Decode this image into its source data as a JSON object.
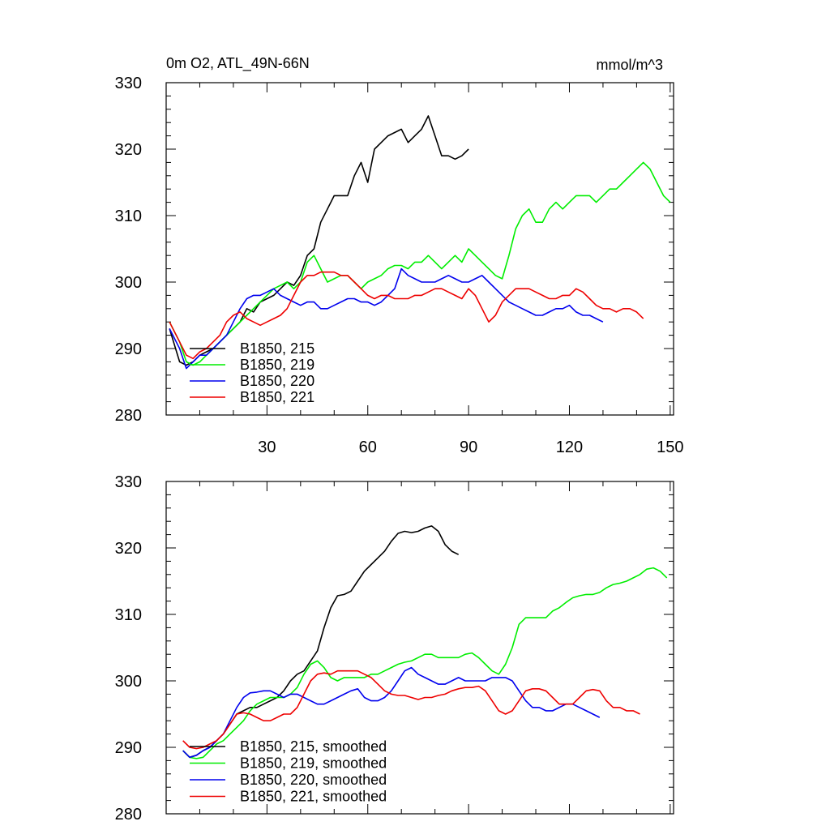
{
  "chart_data": [
    {
      "type": "line",
      "title": "0m O2, ATL_49N-66N",
      "units": "mmol/m^3",
      "xlim": [
        0,
        151
      ],
      "ylim": [
        280,
        330
      ],
      "xticks": [
        30,
        60,
        90,
        120,
        150
      ],
      "yticks": [
        280,
        290,
        300,
        310,
        320,
        330
      ],
      "grid": false,
      "legend_position": "bottom-left",
      "series": [
        {
          "name": "B1850, 215",
          "color": "#000000",
          "x": [
            1,
            4,
            6,
            8,
            10,
            12,
            14,
            16,
            18,
            20,
            22,
            24,
            26,
            28,
            30,
            32,
            34,
            36,
            38,
            40,
            42,
            44,
            46,
            48,
            50,
            52,
            54,
            56,
            58,
            60,
            62,
            64,
            66,
            68,
            70,
            72,
            74,
            76,
            78,
            80,
            82,
            84,
            86,
            88,
            90
          ],
          "y": [
            293,
            288,
            287.5,
            288,
            289,
            289.5,
            290,
            291,
            292,
            293,
            294,
            296,
            295.5,
            297,
            297.5,
            298,
            299,
            300,
            299.5,
            301,
            304,
            305,
            309,
            311,
            313,
            313,
            313,
            316,
            318,
            315,
            320,
            321,
            322,
            322.5,
            323,
            321,
            322,
            323,
            325,
            322,
            319,
            319,
            318.5,
            319,
            320
          ]
        },
        {
          "name": "B1850, 219",
          "color": "#00ee00",
          "x": [
            1,
            4,
            6,
            8,
            10,
            12,
            14,
            16,
            18,
            20,
            22,
            24,
            26,
            28,
            30,
            32,
            34,
            36,
            38,
            40,
            42,
            44,
            46,
            48,
            50,
            52,
            54,
            56,
            58,
            60,
            62,
            64,
            66,
            68,
            70,
            72,
            74,
            76,
            78,
            80,
            82,
            84,
            86,
            88,
            90,
            92,
            94,
            96,
            98,
            100,
            102,
            104,
            106,
            108,
            110,
            112,
            114,
            116,
            118,
            120,
            122,
            124,
            126,
            128,
            130,
            132,
            134,
            136,
            138,
            140,
            142,
            144,
            146,
            148,
            150
          ],
          "y": [
            294,
            291,
            288,
            287.5,
            288,
            289,
            290,
            291,
            292,
            293,
            294,
            295,
            296,
            297,
            298,
            299,
            299.5,
            300,
            299,
            300,
            303,
            304,
            302,
            300,
            300.5,
            301,
            301,
            300,
            299,
            300,
            300.5,
            301,
            302,
            302.5,
            302.5,
            302,
            303,
            303,
            304,
            303,
            302,
            303,
            304,
            303,
            305,
            304,
            303,
            302,
            301,
            300.5,
            304,
            308,
            310,
            311,
            309,
            309,
            311,
            312,
            311,
            312,
            313,
            313,
            313,
            312,
            313,
            314,
            314,
            315,
            316,
            317,
            318,
            317,
            315,
            313,
            312
          ]
        },
        {
          "name": "B1850, 220",
          "color": "#0000ee",
          "x": [
            1,
            4,
            6,
            8,
            10,
            12,
            14,
            16,
            18,
            20,
            22,
            24,
            26,
            28,
            30,
            32,
            34,
            36,
            38,
            40,
            42,
            44,
            46,
            48,
            50,
            52,
            54,
            56,
            58,
            60,
            62,
            64,
            66,
            68,
            70,
            72,
            74,
            76,
            78,
            80,
            82,
            84,
            86,
            88,
            90,
            92,
            94,
            96,
            98,
            100,
            102,
            104,
            106,
            108,
            110,
            112,
            114,
            116,
            118,
            120,
            122,
            124,
            126,
            128,
            130
          ],
          "y": [
            293,
            290,
            287,
            288,
            289,
            289,
            290,
            291,
            292,
            294,
            296,
            297.5,
            298,
            298,
            298.5,
            299,
            298,
            297.5,
            297,
            296.5,
            297,
            297,
            296,
            296,
            296.5,
            297,
            297.5,
            297.5,
            297,
            297,
            296.5,
            297,
            298,
            299,
            302,
            301,
            300.5,
            300,
            300,
            300,
            300.5,
            301,
            300.5,
            300,
            300,
            300.5,
            301,
            300,
            299,
            298,
            297,
            296.5,
            296,
            295.5,
            295,
            295,
            295.5,
            296,
            296,
            296.5,
            295.5,
            295,
            295,
            294.5,
            294
          ]
        },
        {
          "name": "B1850, 221",
          "color": "#ee0000",
          "x": [
            1,
            4,
            6,
            8,
            10,
            12,
            14,
            16,
            18,
            20,
            22,
            24,
            26,
            28,
            30,
            32,
            34,
            36,
            38,
            40,
            42,
            44,
            46,
            48,
            50,
            52,
            54,
            56,
            58,
            60,
            62,
            64,
            66,
            68,
            70,
            72,
            74,
            76,
            78,
            80,
            82,
            84,
            86,
            88,
            90,
            92,
            94,
            96,
            98,
            100,
            102,
            104,
            106,
            108,
            110,
            112,
            114,
            116,
            118,
            120,
            122,
            124,
            126,
            128,
            130,
            132,
            134,
            136,
            138,
            140,
            142
          ],
          "y": [
            294,
            291,
            289,
            288.5,
            289.5,
            290,
            291,
            292,
            294,
            295,
            295.5,
            294.5,
            294,
            293.5,
            294,
            294.5,
            295,
            296,
            298,
            300,
            301,
            301,
            301.5,
            301.5,
            301.5,
            301,
            301,
            300,
            299,
            298,
            297.5,
            298,
            298,
            297.5,
            297.5,
            297.5,
            298,
            298,
            298.5,
            299,
            299,
            298.5,
            298,
            297.5,
            299,
            298,
            296,
            294,
            295,
            297,
            298,
            299,
            299,
            299,
            298.5,
            298,
            297.5,
            297.5,
            298,
            298,
            299,
            298.5,
            297.5,
            296.5,
            296,
            296,
            295.5,
            296,
            296,
            295.5,
            294.5
          ]
        }
      ]
    },
    {
      "type": "line",
      "xlim": [
        0,
        151
      ],
      "ylim": [
        280,
        330
      ],
      "xticks": [
        30,
        60,
        90,
        120,
        150
      ],
      "yticks": [
        280,
        290,
        300,
        310,
        320,
        330
      ],
      "grid": false,
      "legend_position": "bottom-left",
      "series": [
        {
          "name": "B1850, 215, smoothed",
          "color": "#000000",
          "x": [
            5,
            7,
            9,
            11,
            13,
            15,
            17,
            19,
            21,
            23,
            25,
            27,
            29,
            31,
            33,
            35,
            37,
            39,
            41,
            43,
            45,
            47,
            49,
            51,
            53,
            55,
            57,
            59,
            61,
            63,
            65,
            67,
            69,
            71,
            73,
            75,
            77,
            79,
            81,
            83,
            85,
            87
          ],
          "y": [
            289.5,
            288.5,
            288.8,
            289.5,
            290,
            291,
            292,
            293.5,
            295,
            295.5,
            296,
            296,
            296.5,
            297,
            297.5,
            298.5,
            300,
            301,
            301.5,
            303,
            304.5,
            308,
            311,
            312.8,
            313,
            313.5,
            315,
            316.5,
            317.5,
            318.5,
            319.5,
            321,
            322.2,
            322.5,
            322.3,
            322.5,
            323,
            323.3,
            322.5,
            320.5,
            319.5,
            319
          ]
        },
        {
          "name": "B1850, 219, smoothed",
          "color": "#00ee00",
          "x": [
            5,
            7,
            9,
            11,
            13,
            15,
            17,
            19,
            21,
            23,
            25,
            27,
            29,
            31,
            33,
            35,
            37,
            39,
            41,
            43,
            45,
            47,
            49,
            51,
            53,
            55,
            57,
            59,
            61,
            63,
            65,
            67,
            69,
            71,
            73,
            75,
            77,
            79,
            81,
            83,
            85,
            87,
            89,
            91,
            93,
            95,
            97,
            99,
            101,
            103,
            105,
            107,
            109,
            111,
            113,
            115,
            117,
            119,
            121,
            123,
            125,
            127,
            129,
            131,
            133,
            135,
            137,
            139,
            141,
            143,
            145,
            147,
            149
          ],
          "y": [
            289.5,
            288.5,
            288.3,
            288.5,
            289.5,
            290.5,
            291,
            292,
            293,
            294,
            295.5,
            296.5,
            297,
            297.5,
            297.5,
            297.5,
            298,
            299,
            301,
            302.5,
            303,
            302,
            300.5,
            300,
            300.5,
            300.5,
            300.5,
            300.5,
            301,
            301,
            301.5,
            302,
            302.5,
            302.8,
            303,
            303.5,
            304,
            304,
            303.5,
            303.5,
            303.5,
            303.5,
            304,
            304.2,
            303.5,
            302.5,
            301.5,
            301,
            302.5,
            305,
            308.5,
            309.5,
            309.5,
            309.5,
            309.5,
            310.5,
            311,
            311.8,
            312.5,
            312.8,
            313,
            313,
            313.3,
            314,
            314.5,
            314.7,
            315,
            315.5,
            316,
            316.8,
            317,
            316.5,
            315.5
          ]
        },
        {
          "name": "B1850, 220, smoothed",
          "color": "#0000ee",
          "x": [
            5,
            7,
            9,
            11,
            13,
            15,
            17,
            19,
            21,
            23,
            25,
            27,
            29,
            31,
            33,
            35,
            37,
            39,
            41,
            43,
            45,
            47,
            49,
            51,
            53,
            55,
            57,
            59,
            61,
            63,
            65,
            67,
            69,
            71,
            73,
            75,
            77,
            79,
            81,
            83,
            85,
            87,
            89,
            91,
            93,
            95,
            97,
            99,
            101,
            103,
            105,
            107,
            109,
            111,
            113,
            115,
            117,
            119,
            121,
            123,
            125,
            127,
            129
          ],
          "y": [
            289.5,
            288.5,
            288.8,
            289.5,
            290,
            291,
            292,
            294,
            296,
            297.5,
            298.2,
            298.3,
            298.5,
            298.5,
            298,
            297.5,
            298,
            298,
            297.5,
            297,
            296.5,
            296.5,
            297,
            297.5,
            298,
            298.5,
            298.8,
            297.5,
            297,
            297,
            297.5,
            298.5,
            300,
            301.5,
            302,
            301,
            300.5,
            300,
            299.5,
            299.5,
            300,
            300.5,
            300,
            300,
            300,
            300,
            300.5,
            300.5,
            300.5,
            300,
            298.5,
            297,
            296,
            296,
            295.5,
            295.5,
            296,
            296.5,
            296.5,
            296,
            295.5,
            295,
            294.5
          ]
        },
        {
          "name": "B1850, 221, smoothed",
          "color": "#ee0000",
          "x": [
            5,
            7,
            9,
            11,
            13,
            15,
            17,
            19,
            21,
            23,
            25,
            27,
            29,
            31,
            33,
            35,
            37,
            39,
            41,
            43,
            45,
            47,
            49,
            51,
            53,
            55,
            57,
            59,
            61,
            63,
            65,
            67,
            69,
            71,
            73,
            75,
            77,
            79,
            81,
            83,
            85,
            87,
            89,
            91,
            93,
            95,
            97,
            99,
            101,
            103,
            105,
            107,
            109,
            111,
            113,
            115,
            117,
            119,
            121,
            123,
            125,
            127,
            129,
            131,
            133,
            135,
            137,
            139,
            141
          ],
          "y": [
            291,
            290,
            289.8,
            290,
            290.5,
            291,
            292,
            293.5,
            295,
            295.2,
            295,
            294.5,
            294,
            294,
            294.5,
            295,
            295,
            296,
            298,
            300,
            301,
            301.2,
            301,
            301.5,
            301.5,
            301.5,
            301.5,
            301,
            300.5,
            299.5,
            298.5,
            298,
            297.8,
            297.8,
            297.5,
            297.2,
            297.5,
            297.5,
            297.8,
            298,
            298.5,
            298.8,
            299,
            299,
            299.2,
            298.5,
            297,
            295.5,
            295,
            295.5,
            297,
            298.5,
            298.8,
            298.8,
            298.5,
            297.5,
            296.5,
            296.5,
            296.5,
            297.5,
            298.5,
            298.7,
            298.5,
            297,
            296,
            296,
            295.5,
            295.5,
            295
          ]
        }
      ]
    }
  ]
}
